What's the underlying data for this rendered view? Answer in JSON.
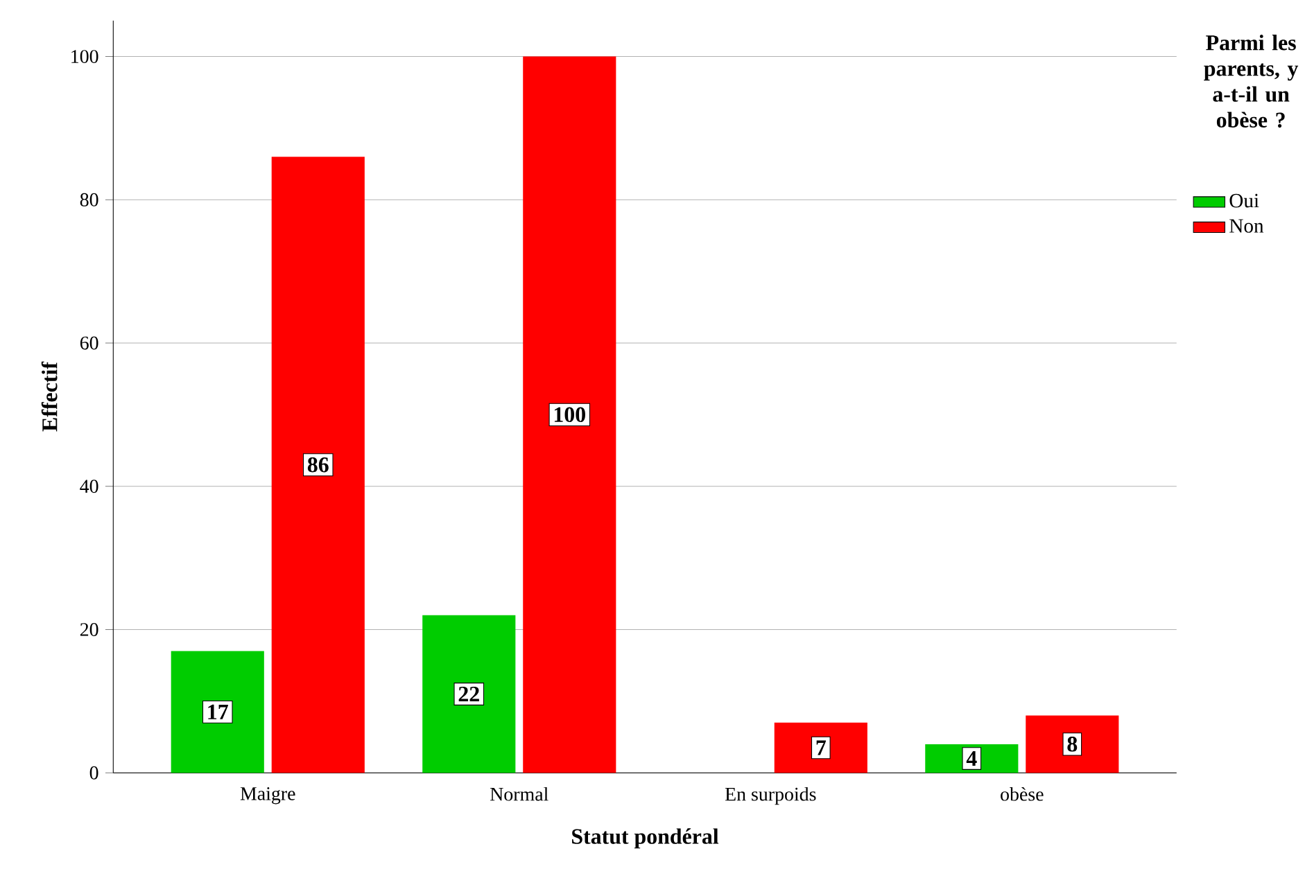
{
  "chart_data": {
    "type": "bar",
    "xlabel": "Statut pondéral",
    "ylabel": "Effectif",
    "legend_title": "Parmi les parents, y a-t-il un obèse ?",
    "categories": [
      "Maigre",
      "Normal",
      "En surpoids",
      "obèse"
    ],
    "series": [
      {
        "name": "Oui",
        "color": "#00cc00",
        "values": [
          17,
          22,
          null,
          4
        ]
      },
      {
        "name": "Non",
        "color": "#ff0000",
        "values": [
          86,
          100,
          7,
          8
        ]
      }
    ],
    "ylim": [
      0,
      105
    ],
    "yticks": [
      0,
      20,
      40,
      60,
      80,
      100
    ],
    "grid": "y",
    "legend": "right",
    "data_labels": true
  }
}
